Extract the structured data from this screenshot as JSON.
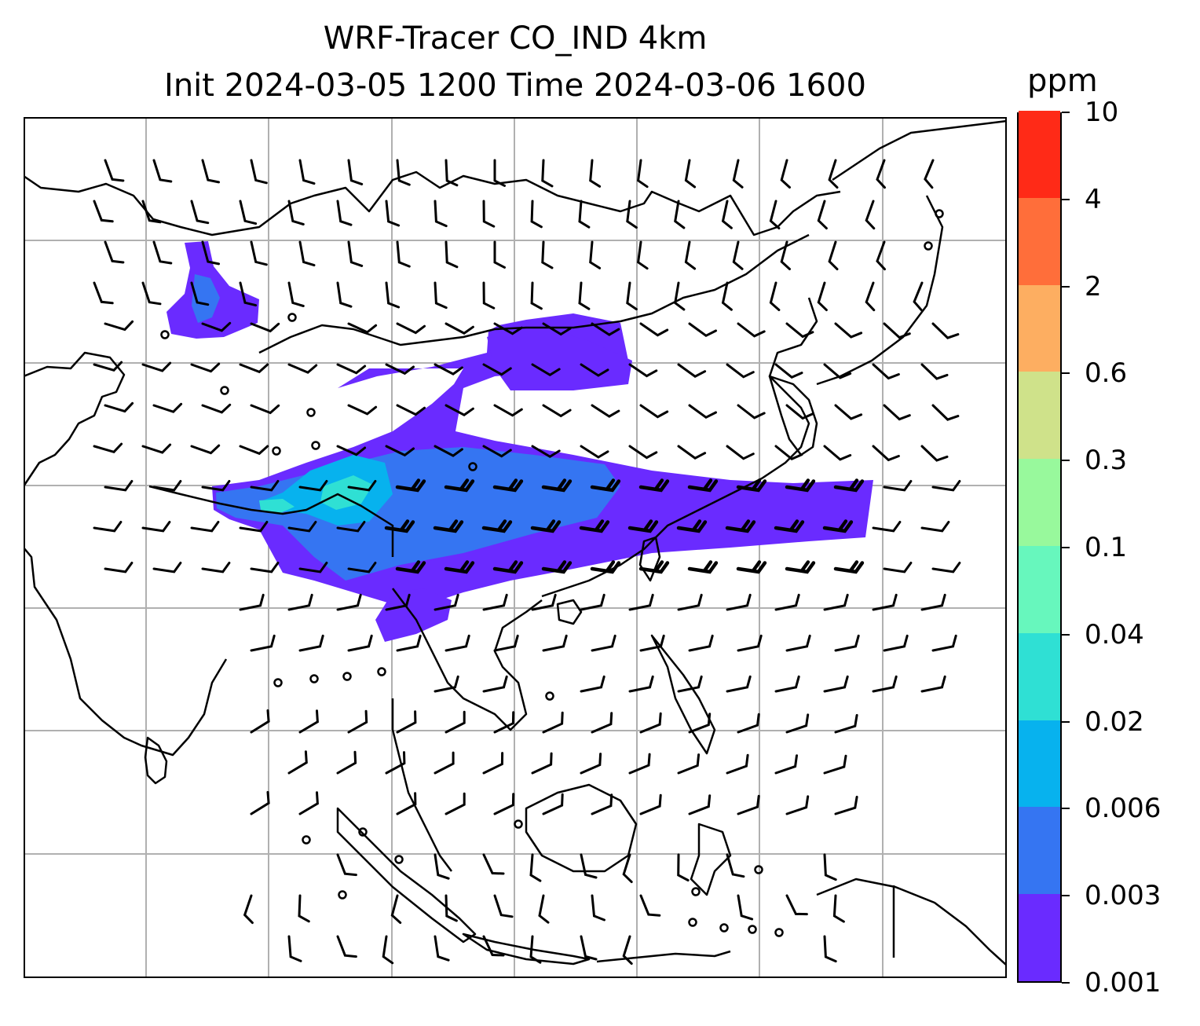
{
  "title": {
    "line1": "WRF-Tracer CO_IND 4km",
    "line2": "Init 2024-03-05 1200 Time 2024-03-06 1600"
  },
  "colorbar": {
    "unit": "ppm",
    "levels": [
      "0.001",
      "0.003",
      "0.006",
      "0.02",
      "0.04",
      "0.1",
      "0.3",
      "0.6",
      "2",
      "4",
      "10"
    ],
    "colors": [
      "#6a2bff",
      "#3575f2",
      "#07b2ee",
      "#2fe0d4",
      "#67f7bd",
      "#98f99c",
      "#cfe28a",
      "#fdae61",
      "#ff6e3a",
      "#ff2a17"
    ]
  },
  "map": {
    "gridlines": "on",
    "grid_color": "#b0b0b0",
    "coastline_color": "#000000",
    "wind_barbs": "on",
    "tracer_plume_color": "#6a2bff"
  }
}
